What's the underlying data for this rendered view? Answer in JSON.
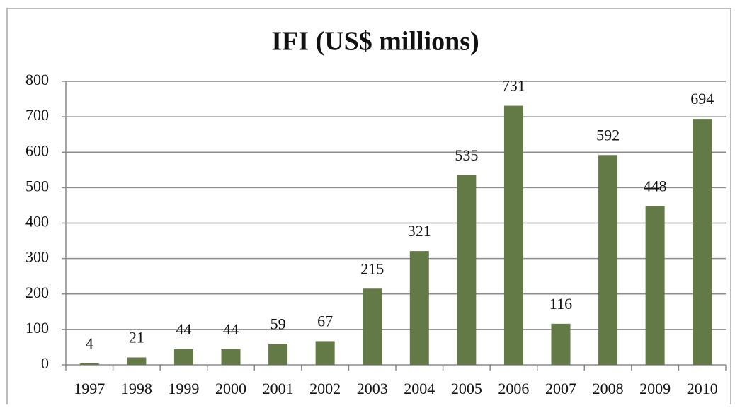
{
  "chart_data": {
    "type": "bar",
    "title": "IFI (US$ millions)",
    "categories": [
      "1997",
      "1998",
      "1999",
      "2000",
      "2001",
      "2002",
      "2003",
      "2004",
      "2005",
      "2006",
      "2007",
      "2008",
      "2009",
      "2010"
    ],
    "values": [
      4,
      21,
      44,
      44,
      59,
      67,
      215,
      321,
      535,
      731,
      116,
      592,
      448,
      694
    ],
    "color": "#647a46",
    "ylim": [
      0,
      800
    ],
    "yticks": [
      0,
      100,
      200,
      300,
      400,
      500,
      600,
      700,
      800
    ],
    "grid": true
  }
}
